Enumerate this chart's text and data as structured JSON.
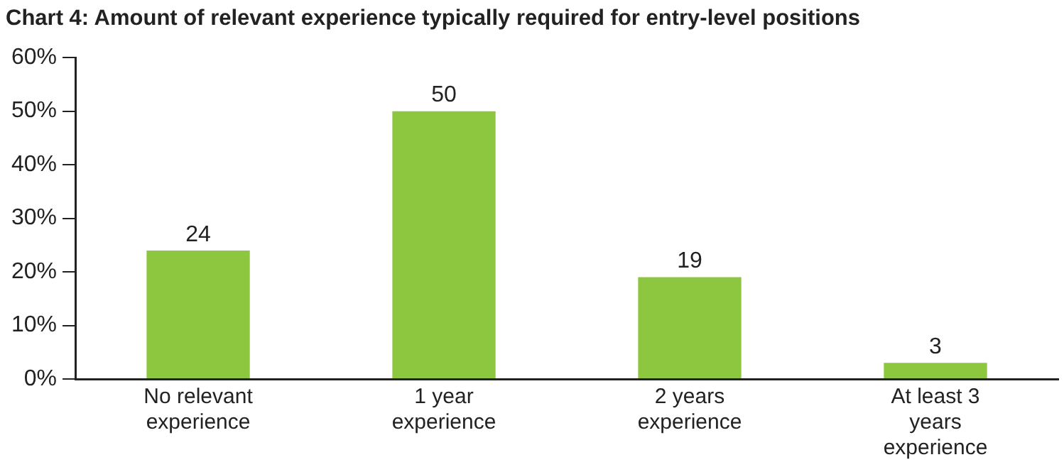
{
  "chart_data": {
    "type": "bar",
    "title": "Chart 4: Amount of relevant experience typically required for entry-level positions",
    "categories": [
      "No relevant experience",
      "1 year experience",
      "2 years experience",
      "At least 3 years experience"
    ],
    "values": [
      24,
      50,
      19,
      3
    ],
    "color": "#8dc63f",
    "ylim": [
      0,
      60
    ],
    "yticks": [
      {
        "value": 0,
        "label": "0%"
      },
      {
        "value": 10,
        "label": "10%"
      },
      {
        "value": 20,
        "label": "20%"
      },
      {
        "value": 30,
        "label": "30%"
      },
      {
        "value": 40,
        "label": "40%"
      },
      {
        "value": 50,
        "label": "50%"
      },
      {
        "value": 60,
        "label": "60%"
      }
    ],
    "data_labels": true,
    "grid": false,
    "legend": false
  }
}
